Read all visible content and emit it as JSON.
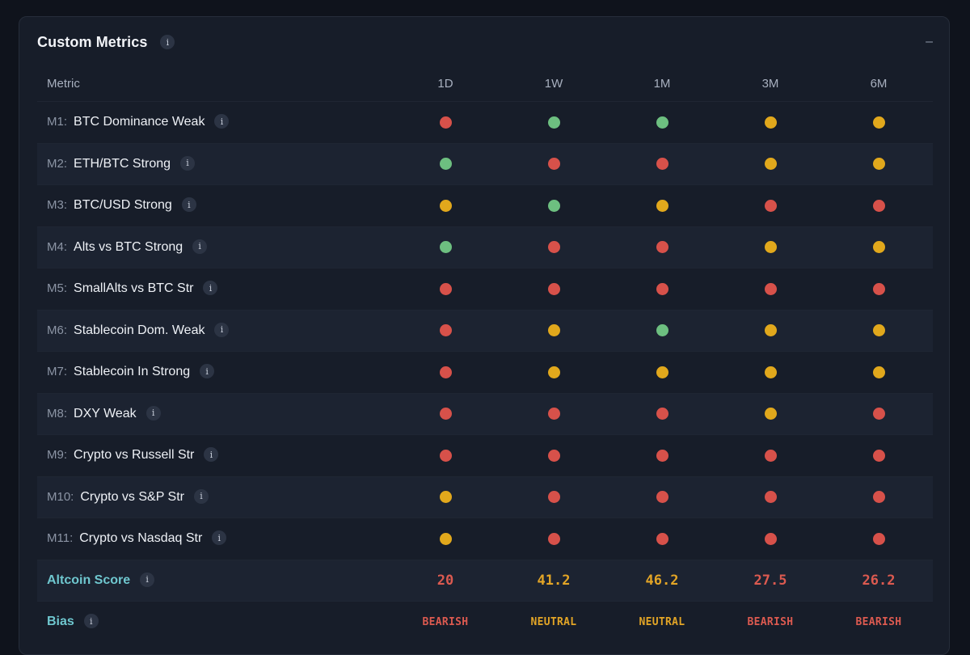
{
  "card": {
    "title": "Custom Metrics",
    "collapse_symbol": "–",
    "info_glyph": "i"
  },
  "columns": [
    "Metric",
    "1D",
    "1W",
    "1M",
    "3M",
    "6M"
  ],
  "colors": {
    "red": "#d7514a",
    "green": "#6dbf80",
    "yellow": "#e1a81c",
    "accent": "#6fc7cf"
  },
  "metrics": [
    {
      "id": "M1:",
      "label": "BTC Dominance Weak",
      "signals": [
        "red",
        "green",
        "green",
        "yellow",
        "yellow"
      ]
    },
    {
      "id": "M2:",
      "label": "ETH/BTC Strong",
      "signals": [
        "green",
        "red",
        "red",
        "yellow",
        "yellow"
      ]
    },
    {
      "id": "M3:",
      "label": "BTC/USD Strong",
      "signals": [
        "yellow",
        "green",
        "yellow",
        "red",
        "red"
      ]
    },
    {
      "id": "M4:",
      "label": "Alts vs BTC Strong",
      "signals": [
        "green",
        "red",
        "red",
        "yellow",
        "yellow"
      ]
    },
    {
      "id": "M5:",
      "label": "SmallAlts vs BTC Str",
      "signals": [
        "red",
        "red",
        "red",
        "red",
        "red"
      ]
    },
    {
      "id": "M6:",
      "label": "Stablecoin Dom. Weak",
      "signals": [
        "red",
        "yellow",
        "green",
        "yellow",
        "yellow"
      ]
    },
    {
      "id": "M7:",
      "label": "Stablecoin In Strong",
      "signals": [
        "red",
        "yellow",
        "yellow",
        "yellow",
        "yellow"
      ]
    },
    {
      "id": "M8:",
      "label": "DXY Weak",
      "signals": [
        "red",
        "red",
        "red",
        "yellow",
        "red"
      ]
    },
    {
      "id": "M9:",
      "label": "Crypto vs Russell Str",
      "signals": [
        "red",
        "red",
        "red",
        "red",
        "red"
      ]
    },
    {
      "id": "M10:",
      "label": "Crypto vs S&P Str",
      "signals": [
        "yellow",
        "red",
        "red",
        "red",
        "red"
      ]
    },
    {
      "id": "M11:",
      "label": "Crypto vs Nasdaq Str",
      "signals": [
        "yellow",
        "red",
        "red",
        "red",
        "red"
      ]
    }
  ],
  "score": {
    "label": "Altcoin Score",
    "values": [
      "20",
      "41.2",
      "46.2",
      "27.5",
      "26.2"
    ],
    "tones": [
      "bearish",
      "neutral",
      "neutral",
      "bearish",
      "bearish"
    ]
  },
  "bias": {
    "label": "Bias",
    "values": [
      "BEARISH",
      "NEUTRAL",
      "NEUTRAL",
      "BEARISH",
      "BEARISH"
    ]
  }
}
